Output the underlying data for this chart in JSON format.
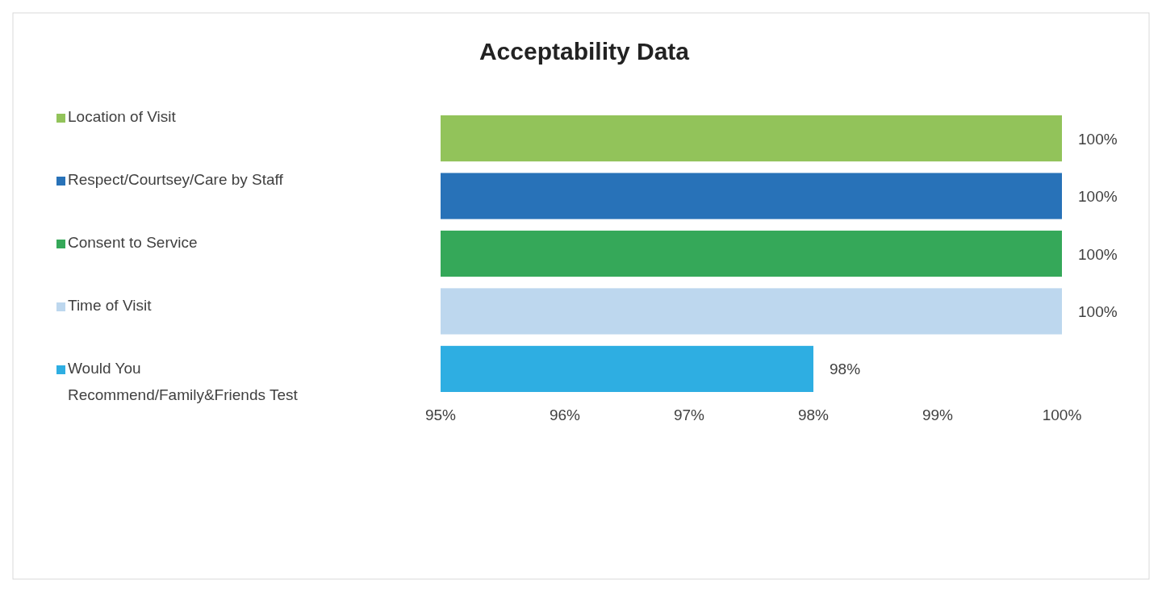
{
  "chart_data": {
    "type": "bar",
    "title": "Acceptability Data",
    "orientation": "horizontal",
    "categories": [
      null
    ],
    "series": [
      {
        "name": "Location of Visit",
        "color": "#92c35a",
        "values": [
          100
        ],
        "value_labels": [
          "100%"
        ]
      },
      {
        "name": "Respect/Courtsey/Care by Staff",
        "color": "#2872b8",
        "values": [
          100
        ],
        "value_labels": [
          "100%"
        ]
      },
      {
        "name": "Consent to Service",
        "color": "#35a859",
        "values": [
          100
        ],
        "value_labels": [
          "100%"
        ]
      },
      {
        "name": "Time of Visit",
        "color": "#bdd7ee",
        "values": [
          100
        ],
        "value_labels": [
          "100%"
        ]
      },
      {
        "name": "Would You Recommend/Family&Friends Test",
        "color": "#2eaee2",
        "values": [
          98
        ],
        "value_labels": [
          "98%"
        ]
      }
    ],
    "xlim": [
      95,
      100
    ],
    "xticks": [
      {
        "value": 95,
        "label": "95%"
      },
      {
        "value": 96,
        "label": "96%"
      },
      {
        "value": 97,
        "label": "97%"
      },
      {
        "value": 98,
        "label": "98%"
      },
      {
        "value": 99,
        "label": "99%"
      },
      {
        "value": 100,
        "label": "100%"
      }
    ],
    "legend": "left"
  }
}
